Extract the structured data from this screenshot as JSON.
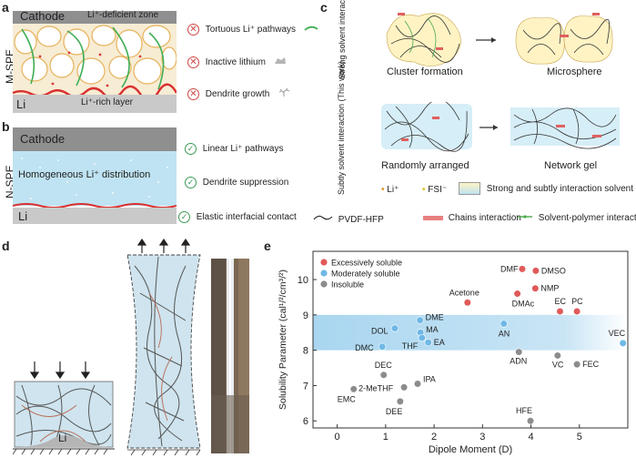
{
  "panels": {
    "a": "a",
    "b": "b",
    "c": "c",
    "d": "d",
    "e": "e"
  },
  "panel_a": {
    "side_label": "M-SPE",
    "cathode": "Cathode",
    "li": "Li",
    "deficient": "Li⁺-deficient zone",
    "rich": "Li⁺-rich layer",
    "legend": [
      "Tortuous Li⁺ pathways",
      "Inactive lithium",
      "Dendrite growth"
    ]
  },
  "panel_b": {
    "side_label": "N-SPE",
    "cathode": "Cathode",
    "li": "Li",
    "middle": "Homogeneous  Li⁺ distribution",
    "legend": [
      "Linear Li⁺ pathways",
      "Dendrite suppression",
      "Elastic interfacial contact"
    ]
  },
  "panel_c": {
    "strong_label": "Strong solvent interaction",
    "subtle_label": "Subtly solvent interaction (This work)",
    "cluster": "Cluster formation",
    "microsphere": "Microsphere",
    "random": "Randomly arranged",
    "network": "Network gel",
    "legend_li": "Li⁺",
    "legend_fsi": "FSI⁻",
    "legend_solvent": "Strong and subtly interaction solvent",
    "legend_pvdf": "PVDF-HFP",
    "legend_chains": "Chains interaction",
    "legend_sp": "Solvent-polymer interaction"
  },
  "panel_d": {
    "li": "Li"
  },
  "chart_data": {
    "type": "scatter",
    "xlabel": "Dipole Moment (D)",
    "ylabel": "Solubility Parameter (cal¹/²/cm³/²)",
    "xlim": [
      -0.5,
      6.0
    ],
    "ylim": [
      5.8,
      10.8
    ],
    "xticks": [
      0,
      1,
      2,
      3,
      4,
      5
    ],
    "yticks": [
      6,
      7,
      8,
      9,
      10
    ],
    "band": [
      8.0,
      9.0
    ],
    "legend": [
      {
        "name": "Excessively soluble",
        "color": "#e05a5a"
      },
      {
        "name": "Moderately soluble",
        "color": "#6fb8e6"
      },
      {
        "name": "Insoluble",
        "color": "#8c8c8c"
      }
    ],
    "points": [
      {
        "label": "DMF",
        "x": 3.82,
        "y": 10.3,
        "cls": 0
      },
      {
        "label": "DMSO",
        "x": 4.1,
        "y": 10.25,
        "cls": 0
      },
      {
        "label": "NMP",
        "x": 4.09,
        "y": 9.75,
        "cls": 0
      },
      {
        "label": "DMAc",
        "x": 3.72,
        "y": 9.6,
        "cls": 0
      },
      {
        "label": "Acetone",
        "x": 2.69,
        "y": 9.35,
        "cls": 0
      },
      {
        "label": "EC",
        "x": 4.6,
        "y": 9.1,
        "cls": 0
      },
      {
        "label": "PC",
        "x": 4.95,
        "y": 9.1,
        "cls": 0
      },
      {
        "label": "DME",
        "x": 1.71,
        "y": 8.85,
        "cls": 1
      },
      {
        "label": "DOL",
        "x": 1.19,
        "y": 8.62,
        "cls": 1
      },
      {
        "label": "MA",
        "x": 1.72,
        "y": 8.5,
        "cls": 1
      },
      {
        "label": "THF",
        "x": 1.75,
        "y": 8.35,
        "cls": 1
      },
      {
        "label": "EA",
        "x": 1.88,
        "y": 8.22,
        "cls": 1
      },
      {
        "label": "DMC",
        "x": 0.93,
        "y": 8.1,
        "cls": 1
      },
      {
        "label": "AN",
        "x": 3.44,
        "y": 8.75,
        "cls": 1
      },
      {
        "label": "VEC",
        "x": 5.9,
        "y": 8.2,
        "cls": 1
      },
      {
        "label": "ADN",
        "x": 3.75,
        "y": 7.95,
        "cls": 2
      },
      {
        "label": "VC",
        "x": 4.55,
        "y": 7.85,
        "cls": 2
      },
      {
        "label": "FEC",
        "x": 4.95,
        "y": 7.6,
        "cls": 2
      },
      {
        "label": "DEC",
        "x": 0.96,
        "y": 7.3,
        "cls": 2
      },
      {
        "label": "IPA",
        "x": 1.66,
        "y": 7.05,
        "cls": 2
      },
      {
        "label": "2-MeTHF",
        "x": 1.38,
        "y": 6.95,
        "cls": 2
      },
      {
        "label": "EMC",
        "x": 0.34,
        "y": 6.9,
        "cls": 2
      },
      {
        "label": "DEE",
        "x": 1.3,
        "y": 6.55,
        "cls": 2
      },
      {
        "label": "HFE",
        "x": 3.99,
        "y": 6.0,
        "cls": 2
      }
    ]
  }
}
